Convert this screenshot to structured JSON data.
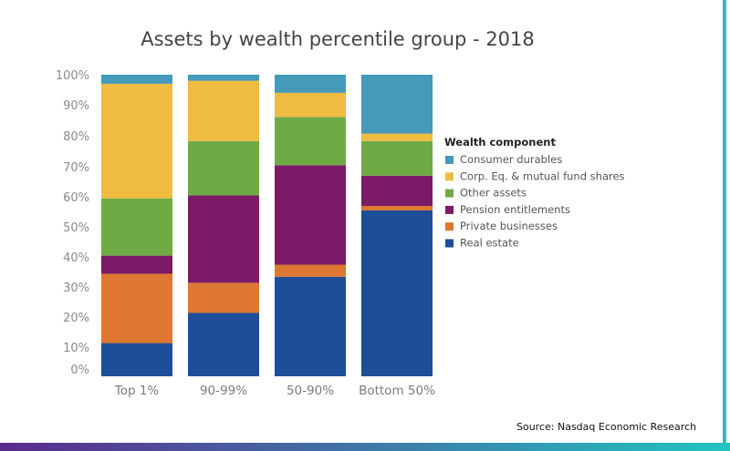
{
  "chart_data": {
    "type": "bar",
    "stacked": true,
    "title": "Assets by wealth percentile group - 2018",
    "xlabel": "",
    "ylabel": "",
    "ylim": [
      0,
      100
    ],
    "y_ticks": [
      "100%",
      "90%",
      "80%",
      "70%",
      "60%",
      "50%",
      "40%",
      "30%",
      "20%",
      "10%",
      "0%"
    ],
    "categories": [
      "Top 1%",
      "90-99%",
      "50-90%",
      "Bottom 50%"
    ],
    "series": [
      {
        "name": "Real estate",
        "color": "#1f4e99",
        "values": [
          11,
          21,
          33,
          55
        ]
      },
      {
        "name": "Private businesses",
        "color": "#dd7732",
        "values": [
          23,
          10,
          4,
          1.5
        ]
      },
      {
        "name": "Pension entitlements",
        "color": "#7b1a66",
        "values": [
          6,
          29,
          33,
          10
        ]
      },
      {
        "name": "Other assets",
        "color": "#6fab45",
        "values": [
          19,
          18,
          16,
          11.5
        ]
      },
      {
        "name": "Corp. Eq. & mutual fund shares",
        "color": "#f0bb41",
        "values": [
          38,
          20,
          8,
          2.5
        ]
      },
      {
        "name": "Consumer durables",
        "color": "#4599b9",
        "values": [
          3,
          2,
          6,
          19.5
        ]
      }
    ],
    "legend": {
      "title": "Wealth component",
      "placement": "right",
      "order": [
        "Consumer durables",
        "Corp. Eq. & mutual fund shares",
        "Other assets",
        "Pension entitlements",
        "Private businesses",
        "Real estate"
      ]
    },
    "grid": false
  },
  "source_note": "Source: Nasdaq Economic Research",
  "colors": {
    "border_right": "#2fc0bd",
    "bottom_bar_start": "#5b2a8e",
    "bottom_bar_end": "#22c4c0"
  }
}
